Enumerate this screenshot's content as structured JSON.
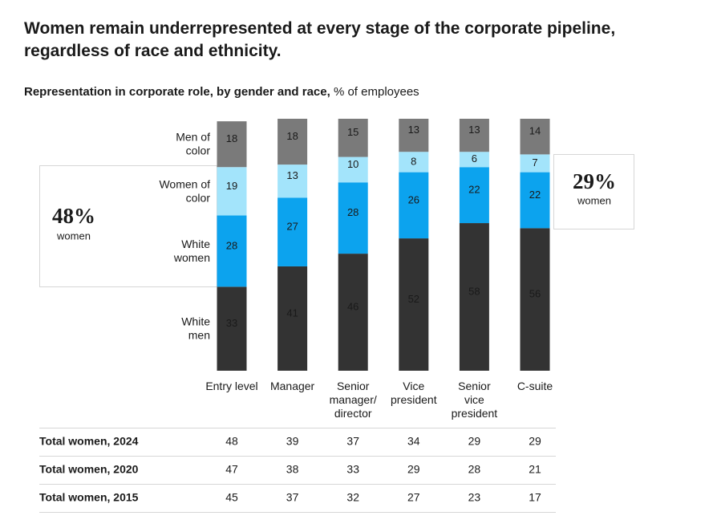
{
  "chart_data": {
    "type": "stacked_bar",
    "title": "Women remain underrepresented at every stage of the corporate pipeline, regardless of race and ethnicity.",
    "subtitle": "Representation in corporate role, by gender and race,",
    "subtitle_unit": "% of employees",
    "categories": [
      "Entry level",
      "Manager",
      "Senior manager/ director",
      "Vice president",
      "Senior vice president",
      "C-suite"
    ],
    "series": [
      {
        "name": "White men",
        "color": "#333333",
        "label_color": "#ffffff",
        "values": [
          33,
          41,
          46,
          52,
          58,
          56
        ]
      },
      {
        "name": "White women",
        "color": "#0ca3ee",
        "label_color": "#1a1a1a",
        "values": [
          28,
          27,
          28,
          26,
          22,
          22
        ]
      },
      {
        "name": "Women of color",
        "color": "#a3e4fb",
        "label_color": "#1a1a1a",
        "values": [
          19,
          13,
          10,
          8,
          6,
          7
        ]
      },
      {
        "name": "Men of color",
        "color": "#7a7a7a",
        "label_color": "#ffffff",
        "values": [
          18,
          18,
          15,
          13,
          13,
          14
        ]
      }
    ],
    "annotations": [
      {
        "value": "48%",
        "label": "women"
      },
      {
        "value": "29%",
        "label": "women"
      }
    ],
    "table": {
      "rows": [
        {
          "label": "Total women, 2024",
          "values": [
            48,
            39,
            37,
            34,
            29,
            29
          ]
        },
        {
          "label": "Total women, 2020",
          "values": [
            47,
            38,
            33,
            29,
            28,
            21
          ]
        },
        {
          "label": "Total women, 2015",
          "values": [
            45,
            37,
            32,
            27,
            23,
            17
          ]
        }
      ]
    }
  }
}
